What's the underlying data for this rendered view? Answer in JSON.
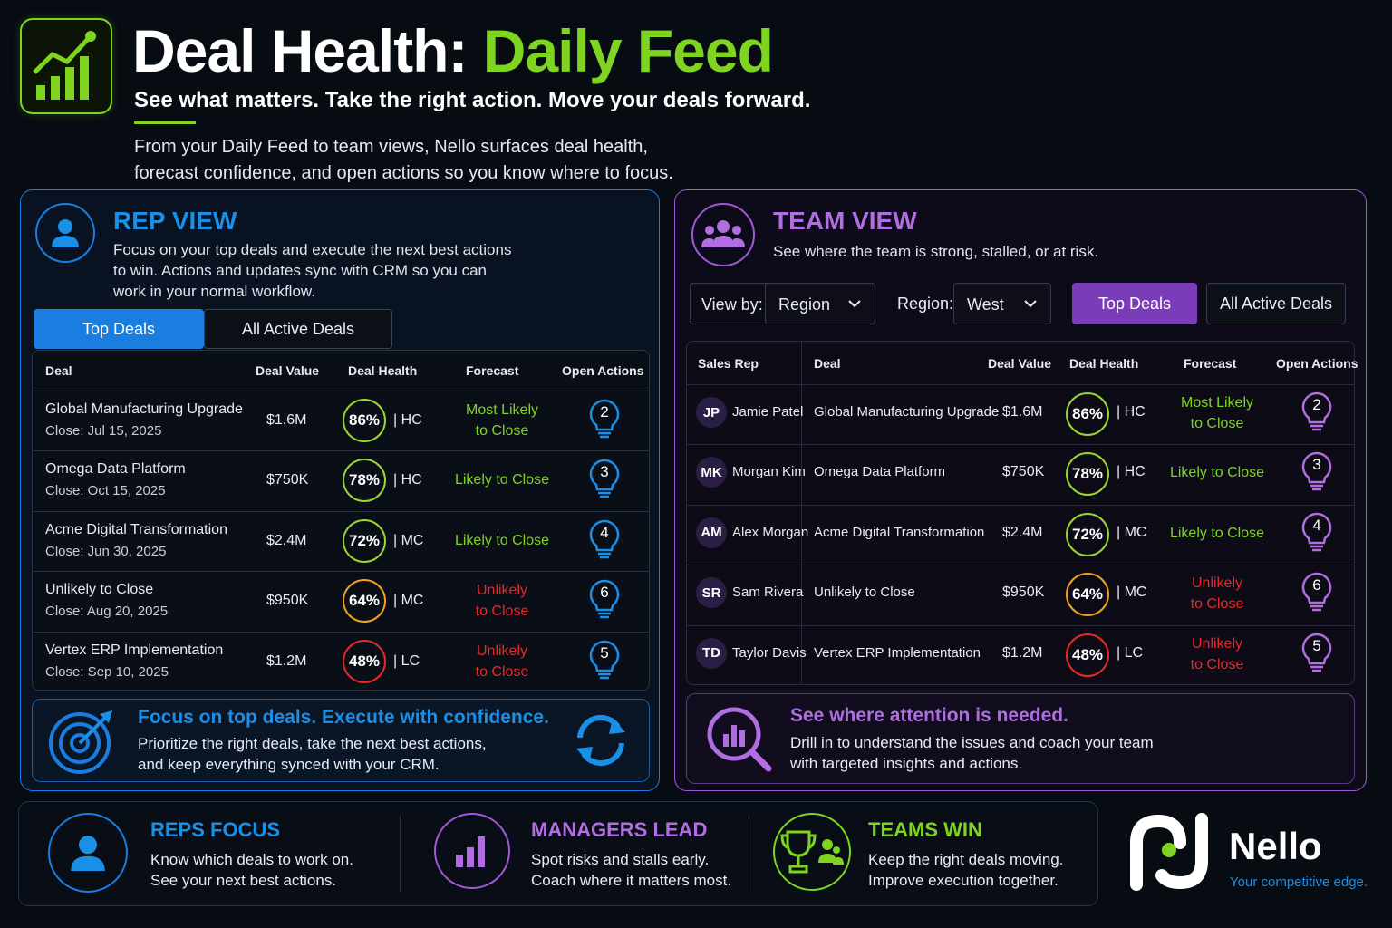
{
  "header": {
    "title_main": "Deal Health: ",
    "title_accent": "Daily Feed",
    "subtitle": "See what matters. Take the right action. Move your deals forward.",
    "intro_line1": "From your Daily Feed to team views, Nello surfaces deal health,",
    "intro_line2": "forecast confidence, and open actions so you know where to focus.",
    "logo_icon": "growth-chart-icon"
  },
  "colors": {
    "accent_green": "#7fd321",
    "rep_blue": "#1a7ee0",
    "team_purple": "#a258d6",
    "risk_red": "#e8282b",
    "warn_orange": "#f0a21a"
  },
  "rep": {
    "title": "REP VIEW",
    "desc1": "Focus on your top deals and execute the next best actions",
    "desc2": "to win. Actions and updates sync with CRM so you can",
    "desc3": "work in your normal workflow.",
    "tabs": [
      "Top Deals",
      "All Active Deals"
    ],
    "columns": [
      "Deal",
      "Deal Value",
      "Deal Health",
      "Forecast",
      "Open Actions"
    ],
    "rows": [
      {
        "deal": "Global Manufacturing Upgrade",
        "close": "Close: Jul 15, 2025",
        "value": "$1.6M",
        "health": "86%",
        "conf": "| HC",
        "f1": "Most Likely",
        "f2": "to Close",
        "actions": "2"
      },
      {
        "deal": "Omega Data Platform",
        "close": "Close: Oct 15, 2025",
        "value": "$750K",
        "health": "78%",
        "conf": "| HC",
        "f1": "Likely to Close",
        "f2": "",
        "actions": "3"
      },
      {
        "deal": "Acme Digital Transformation",
        "close": "Close: Jun 30, 2025",
        "value": "$2.4M",
        "health": "72%",
        "conf": "| MC",
        "f1": "Likely to Close",
        "f2": "",
        "actions": "4"
      },
      {
        "deal": "Unlikely to Close",
        "close": "Close: Aug 20, 2025",
        "value": "$950K",
        "health": "64%",
        "conf": "| MC",
        "f1": "Unlikely",
        "f2": "to Close",
        "actions": "6"
      },
      {
        "deal": "Vertex ERP Implementation",
        "close": "Close: Sep 10, 2025",
        "value": "$1.2M",
        "health": "48%",
        "conf": "| LC",
        "f1": "Unlikely",
        "f2": "to Close",
        "actions": "5"
      }
    ],
    "callout_title": "Focus on top deals. Execute with confidence.",
    "callout_line1": "Prioritize the right deals, take the next best actions,",
    "callout_line2": "and keep everything synced with your CRM."
  },
  "team": {
    "title": "TEAM VIEW",
    "desc": "See where the team is strong, stalled, or at risk.",
    "view_by_label": "View by:",
    "view_by_value": "Region",
    "region_label": "Region:",
    "region_value": "West",
    "tabs": [
      "Top Deals",
      "All Active Deals"
    ],
    "columns": [
      "Sales Rep",
      "Deal",
      "Deal Value",
      "Deal Health",
      "Forecast",
      "Open Actions"
    ],
    "rows": [
      {
        "initials": "JP",
        "rep": "Jamie Patel",
        "deal": "Global Manufacturing Upgrade",
        "value": "$1.6M",
        "health": "86%",
        "conf": "| HC",
        "f1": "Most Likely",
        "f2": "to Close",
        "actions": "2"
      },
      {
        "initials": "MK",
        "rep": "Morgan Kim",
        "deal": "Omega Data Platform",
        "value": "$750K",
        "health": "78%",
        "conf": "| HC",
        "f1": "Likely to Close",
        "f2": "",
        "actions": "3"
      },
      {
        "initials": "AM",
        "rep": "Alex Morgan",
        "deal": "Acme Digital Transformation",
        "value": "$2.4M",
        "health": "72%",
        "conf": "| MC",
        "f1": "Likely to Close",
        "f2": "",
        "actions": "4"
      },
      {
        "initials": "SR",
        "rep": "Sam Rivera",
        "deal": "Unlikely to Close",
        "value": "$950K",
        "health": "64%",
        "conf": "| MC",
        "f1": "Unlikely",
        "f2": "to Close",
        "actions": "6"
      },
      {
        "initials": "TD",
        "rep": "Taylor Davis",
        "deal": "Vertex ERP Implementation",
        "value": "$1.2M",
        "health": "48%",
        "conf": "| LC",
        "f1": "Unlikely",
        "f2": "to Close",
        "actions": "5"
      }
    ],
    "callout_title": "See where attention is needed.",
    "callout_line1": "Drill in to understand the issues and coach your team",
    "callout_line2": "with targeted insights and actions."
  },
  "bottom": {
    "items": [
      {
        "title": "REPS FOCUS",
        "line1": "Know which deals to work on.",
        "line2": "See your next best actions."
      },
      {
        "title": "MANAGERS LEAD",
        "line1": "Spot risks and stalls early.",
        "line2": "Coach where it matters most."
      },
      {
        "title": "TEAMS WIN",
        "line1": "Keep the right deals moving.",
        "line2": "Improve execution together."
      }
    ],
    "brand": "Nello",
    "tagline": "Your competitive edge."
  }
}
